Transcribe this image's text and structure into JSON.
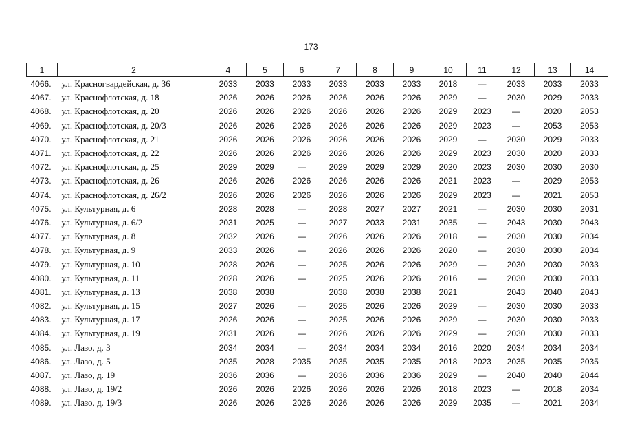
{
  "page_number": "173",
  "table": {
    "header": [
      "1",
      "2",
      "4",
      "5",
      "6",
      "7",
      "8",
      "9",
      "10",
      "11",
      "12",
      "13",
      "14"
    ],
    "rows": [
      [
        "4066.",
        "ул. Красногвардейская, д. 36",
        "2033",
        "2033",
        "2033",
        "2033",
        "2033",
        "2033",
        "2018",
        "—",
        "2033",
        "2033",
        "2033"
      ],
      [
        "4067.",
        "ул. Краснофлотская, д. 18",
        "2026",
        "2026",
        "2026",
        "2026",
        "2026",
        "2026",
        "2029",
        "—",
        "2030",
        "2029",
        "2033"
      ],
      [
        "4068.",
        "ул. Краснофлотская, д. 20",
        "2026",
        "2026",
        "2026",
        "2026",
        "2026",
        "2026",
        "2029",
        "2023",
        "—",
        "2020",
        "2053"
      ],
      [
        "4069.",
        "ул. Краснофлотская, д. 20/3",
        "2026",
        "2026",
        "2026",
        "2026",
        "2026",
        "2026",
        "2029",
        "2023",
        "—",
        "2053",
        "2053"
      ],
      [
        "4070.",
        "ул. Краснофлотская, д. 21",
        "2026",
        "2026",
        "2026",
        "2026",
        "2026",
        "2026",
        "2029",
        "—",
        "2030",
        "2029",
        "2033"
      ],
      [
        "4071.",
        "ул. Краснофлотская, д. 22",
        "2026",
        "2026",
        "2026",
        "2026",
        "2026",
        "2026",
        "2029",
        "2023",
        "2030",
        "2020",
        "2033"
      ],
      [
        "4072.",
        "ул. Краснофлотская, д. 25",
        "2029",
        "2029",
        "—",
        "2029",
        "2029",
        "2029",
        "2020",
        "2023",
        "2030",
        "2030",
        "2030"
      ],
      [
        "4073.",
        "ул. Краснофлотская, д. 26",
        "2026",
        "2026",
        "2026",
        "2026",
        "2026",
        "2026",
        "2021",
        "2023",
        "—",
        "2029",
        "2053"
      ],
      [
        "4074.",
        "ул. Краснофлотская, д. 26/2",
        "2026",
        "2026",
        "2026",
        "2026",
        "2026",
        "2026",
        "2029",
        "2023",
        "—",
        "2021",
        "2053"
      ],
      [
        "4075.",
        "ул. Культурная, д. 6",
        "2028",
        "2028",
        "—",
        "2028",
        "2027",
        "2027",
        "2021",
        "—",
        "2030",
        "2030",
        "2031"
      ],
      [
        "4076.",
        "ул. Культурная, д. 6/2",
        "2031",
        "2025",
        "—",
        "2027",
        "2033",
        "2031",
        "2035",
        "—",
        "2043",
        "2030",
        "2043"
      ],
      [
        "4077.",
        "ул. Культурная, д. 8",
        "2032",
        "2026",
        "—",
        "2026",
        "2026",
        "2026",
        "2018",
        "—",
        "2030",
        "2030",
        "2034"
      ],
      [
        "4078.",
        "ул. Культурная, д. 9",
        "2033",
        "2026",
        "—",
        "2026",
        "2026",
        "2026",
        "2020",
        "—",
        "2030",
        "2030",
        "2034"
      ],
      [
        "4079.",
        "ул. Культурная, д. 10",
        "2028",
        "2026",
        "—",
        "2025",
        "2026",
        "2026",
        "2029",
        "—",
        "2030",
        "2030",
        "2033"
      ],
      [
        "4080.",
        "ул. Культурная, д. 11",
        "2028",
        "2026",
        "—",
        "2025",
        "2026",
        "2026",
        "2016",
        "—",
        "2030",
        "2030",
        "2033"
      ],
      [
        "4081.",
        "ул. Культурная, д. 13",
        "2038",
        "2038",
        null,
        "2038",
        "2038",
        "2038",
        "2021",
        null,
        "2043",
        "2040",
        "2043"
      ],
      [
        "4082.",
        "ул. Культурная, д. 15",
        "2027",
        "2026",
        "—",
        "2025",
        "2026",
        "2026",
        "2029",
        "—",
        "2030",
        "2030",
        "2033"
      ],
      [
        "4083.",
        "ул. Культурная, д. 17",
        "2026",
        "2026",
        "—",
        "2025",
        "2026",
        "2026",
        "2029",
        "—",
        "2030",
        "2030",
        "2033"
      ],
      [
        "4084.",
        "ул. Культурная, д. 19",
        "2031",
        "2026",
        "—",
        "2026",
        "2026",
        "2026",
        "2029",
        "—",
        "2030",
        "2030",
        "2033"
      ],
      [
        "4085.",
        "ул. Лазо, д. 3",
        "2034",
        "2034",
        "—",
        "2034",
        "2034",
        "2034",
        "2016",
        "2020",
        "2034",
        "2034",
        "2034"
      ],
      [
        "4086.",
        "ул. Лазо, д. 5",
        "2035",
        "2028",
        "2035",
        "2035",
        "2035",
        "2035",
        "2018",
        "2023",
        "2035",
        "2035",
        "2035"
      ],
      [
        "4087.",
        "ул. Лазо, д. 19",
        "2036",
        "2036",
        "—",
        "2036",
        "2036",
        "2036",
        "2029",
        "—",
        "2040",
        "2040",
        "2044"
      ],
      [
        "4088.",
        "ул. Лазо, д. 19/2",
        "2026",
        "2026",
        "2026",
        "2026",
        "2026",
        "2026",
        "2018",
        "2023",
        "—",
        "2018",
        "2034"
      ],
      [
        "4089.",
        "ул. Лазо, д. 19/3",
        "2026",
        "2026",
        "2026",
        "2026",
        "2026",
        "2026",
        "2029",
        "2035",
        "—",
        "2021",
        "2034"
      ]
    ]
  }
}
